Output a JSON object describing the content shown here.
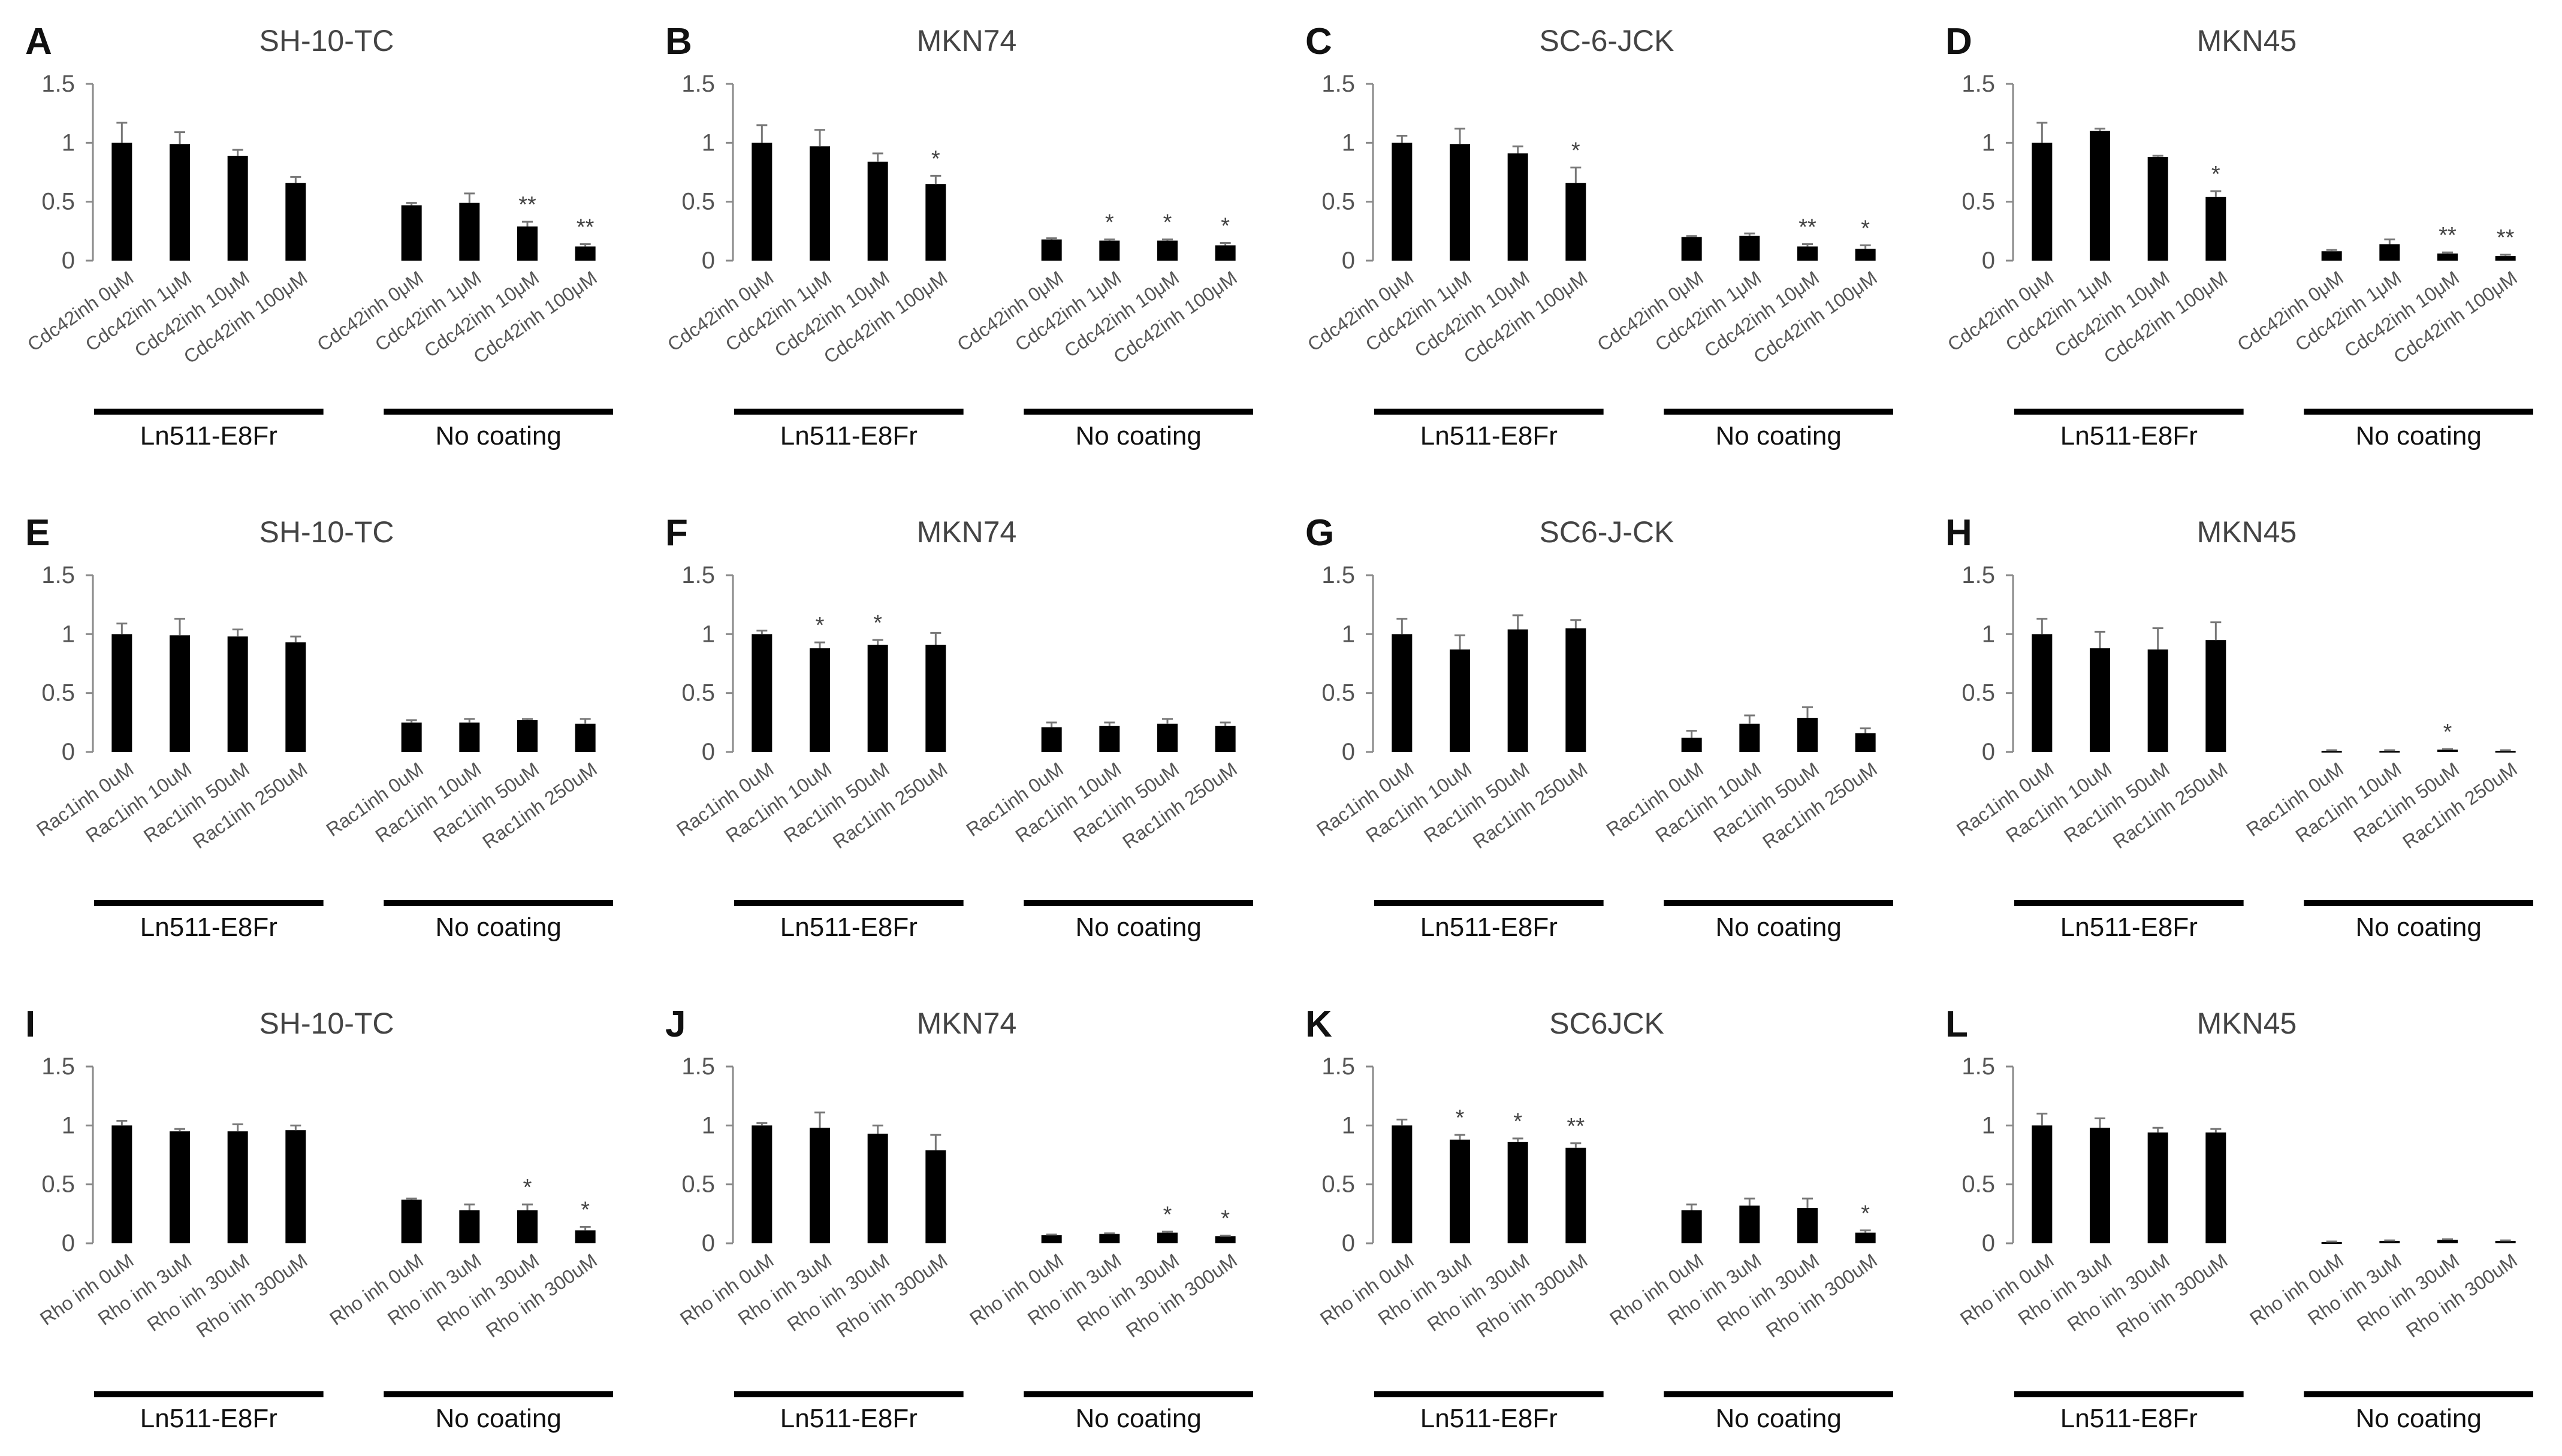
{
  "colors": {
    "bar": "#000000",
    "axis": "#8a8a8a",
    "error": "#777777",
    "text": "#333333"
  },
  "chart_data": [
    {
      "letter": "A",
      "type": "bar",
      "title": "SH-10-TC",
      "ylim": [
        0,
        1.5
      ],
      "yticks": [
        "0",
        "0.5",
        "1",
        "1.5"
      ],
      "groups": [
        "Ln511-E8Fr",
        "No coating"
      ],
      "categories": [
        "Cdc42inh 0μM",
        "Cdc42inh 1μM",
        "Cdc42inh 10μM",
        "Cdc42inh 100μM",
        "Cdc42inh 0μM",
        "Cdc42inh 1μM",
        "Cdc42inh 10μM",
        "Cdc42inh 100μM"
      ],
      "values": [
        1.0,
        0.99,
        0.89,
        0.66,
        0.47,
        0.49,
        0.29,
        0.12
      ],
      "errors": [
        0.17,
        0.1,
        0.05,
        0.05,
        0.02,
        0.08,
        0.04,
        0.02
      ],
      "sig": [
        "",
        "",
        "",
        "",
        "",
        "",
        "**",
        "**"
      ]
    },
    {
      "letter": "B",
      "type": "bar",
      "title": "MKN74",
      "ylim": [
        0,
        1.5
      ],
      "yticks": [
        "0",
        "0.5",
        "1",
        "1.5"
      ],
      "groups": [
        "Ln511-E8Fr",
        "No coating"
      ],
      "categories": [
        "Cdc42inh 0μM",
        "Cdc42inh 1μM",
        "Cdc42inh 10μM",
        "Cdc42inh 100μM",
        "Cdc42inh 0μM",
        "Cdc42inh 1μM",
        "Cdc42inh 10μM",
        "Cdc42inh 100μM"
      ],
      "values": [
        1.0,
        0.97,
        0.84,
        0.65,
        0.18,
        0.17,
        0.17,
        0.13
      ],
      "errors": [
        0.15,
        0.14,
        0.07,
        0.07,
        0.01,
        0.01,
        0.01,
        0.02
      ],
      "sig": [
        "",
        "",
        "",
        "*",
        "",
        "*",
        "*",
        "*"
      ]
    },
    {
      "letter": "C",
      "type": "bar",
      "title": "SC-6-JCK",
      "ylim": [
        0,
        1.5
      ],
      "yticks": [
        "0",
        "0.5",
        "1",
        "1.5"
      ],
      "groups": [
        "Ln511-E8Fr",
        "No coating"
      ],
      "categories": [
        "Cdc42inh 0μM",
        "Cdc42inh 1μM",
        "Cdc42inh 10μM",
        "Cdc42inh 100μM",
        "Cdc42inh 0μM",
        "Cdc42inh 1μM",
        "Cdc42inh 10μM",
        "Cdc42inh 100μM"
      ],
      "values": [
        1.0,
        0.99,
        0.91,
        0.66,
        0.2,
        0.21,
        0.12,
        0.1
      ],
      "errors": [
        0.06,
        0.13,
        0.06,
        0.13,
        0.01,
        0.02,
        0.02,
        0.03
      ],
      "sig": [
        "",
        "",
        "",
        "*",
        "",
        "",
        "**",
        "*"
      ]
    },
    {
      "letter": "D",
      "type": "bar",
      "title": "MKN45",
      "ylim": [
        0,
        1.5
      ],
      "yticks": [
        "0",
        "0.5",
        "1",
        "1.5"
      ],
      "groups": [
        "Ln511-E8Fr",
        "No coating"
      ],
      "categories": [
        "Cdc42inh 0μM",
        "Cdc42inh 1μM",
        "Cdc42inh 10μM",
        "Cdc42inh 100μM",
        "Cdc42inh 0μM",
        "Cdc42inh 1μM",
        "Cdc42inh 10μM",
        "Cdc42inh 100μM"
      ],
      "values": [
        1.0,
        1.1,
        0.88,
        0.54,
        0.08,
        0.14,
        0.06,
        0.04
      ],
      "errors": [
        0.17,
        0.02,
        0.01,
        0.05,
        0.01,
        0.04,
        0.01,
        0.01
      ],
      "sig": [
        "",
        "",
        "",
        "*",
        "",
        "",
        "**",
        "**"
      ]
    },
    {
      "letter": "E",
      "type": "bar",
      "title": "SH-10-TC",
      "ylim": [
        0,
        1.5
      ],
      "yticks": [
        "0",
        "0.5",
        "1",
        "1.5"
      ],
      "groups": [
        "Ln511-E8Fr",
        "No coating"
      ],
      "categories": [
        "Rac1inh 0uM",
        "Rac1inh 10uM",
        "Rac1inh 50uM",
        "Rac1inh 250uM",
        "Rac1inh 0uM",
        "Rac1inh 10uM",
        "Rac1inh 50uM",
        "Rac1inh 250uM"
      ],
      "values": [
        1.0,
        0.99,
        0.98,
        0.93,
        0.25,
        0.25,
        0.27,
        0.24
      ],
      "errors": [
        0.09,
        0.14,
        0.06,
        0.05,
        0.02,
        0.03,
        0.01,
        0.04
      ],
      "sig": [
        "",
        "",
        "",
        "",
        "",
        "",
        "",
        ""
      ]
    },
    {
      "letter": "F",
      "type": "bar",
      "title": "MKN74",
      "ylim": [
        0,
        1.5
      ],
      "yticks": [
        "0",
        "0.5",
        "1",
        "1.5"
      ],
      "groups": [
        "Ln511-E8Fr",
        "No coating"
      ],
      "categories": [
        "Rac1inh 0uM",
        "Rac1inh 10uM",
        "Rac1inh 50uM",
        "Rac1inh 250uM",
        "Rac1inh 0uM",
        "Rac1inh 10uM",
        "Rac1inh 50uM",
        "Rac1inh 250uM"
      ],
      "values": [
        1.0,
        0.88,
        0.91,
        0.91,
        0.21,
        0.22,
        0.24,
        0.22
      ],
      "errors": [
        0.03,
        0.05,
        0.04,
        0.1,
        0.04,
        0.03,
        0.04,
        0.03
      ],
      "sig": [
        "",
        "*",
        "*",
        "",
        "",
        "",
        "",
        ""
      ]
    },
    {
      "letter": "G",
      "type": "bar",
      "title": "SC6-J-CK",
      "ylim": [
        0,
        1.5
      ],
      "yticks": [
        "0",
        "0.5",
        "1",
        "1.5"
      ],
      "groups": [
        "Ln511-E8Fr",
        "No coating"
      ],
      "categories": [
        "Rac1inh 0uM",
        "Rac1inh 10uM",
        "Rac1inh 50uM",
        "Rac1inh 250uM",
        "Rac1inh 0uM",
        "Rac1inh 10uM",
        "Rac1inh 50uM",
        "Rac1inh 250uM"
      ],
      "values": [
        1.0,
        0.87,
        1.04,
        1.05,
        0.12,
        0.24,
        0.29,
        0.16
      ],
      "errors": [
        0.13,
        0.12,
        0.12,
        0.07,
        0.06,
        0.07,
        0.09,
        0.04
      ],
      "sig": [
        "",
        "",
        "",
        "",
        "",
        "",
        "",
        ""
      ]
    },
    {
      "letter": "H",
      "type": "bar",
      "title": "MKN45",
      "ylim": [
        0,
        1.5
      ],
      "yticks": [
        "0",
        "0.5",
        "1",
        "1.5"
      ],
      "groups": [
        "Ln511-E8Fr",
        "No coating"
      ],
      "categories": [
        "Rac1inh 0uM",
        "Rac1inh 10uM",
        "Rac1inh 50uM",
        "Rac1inh 250uM",
        "Rac1inh 0uM",
        "Rac1inh 10uM",
        "Rac1inh 50uM",
        "Rac1inh 250uM"
      ],
      "values": [
        1.0,
        0.88,
        0.87,
        0.95,
        0.01,
        0.01,
        0.02,
        0.01
      ],
      "errors": [
        0.13,
        0.14,
        0.18,
        0.15,
        0.005,
        0.005,
        0.005,
        0.005
      ],
      "sig": [
        "",
        "",
        "",
        "",
        "",
        "",
        "*",
        ""
      ]
    },
    {
      "letter": "I",
      "type": "bar",
      "title": "SH-10-TC",
      "ylim": [
        0,
        1.5
      ],
      "yticks": [
        "0",
        "0.5",
        "1",
        "1.5"
      ],
      "groups": [
        "Ln511-E8Fr",
        "No coating"
      ],
      "categories": [
        "Rho inh 0uM",
        "Rho inh 3uM",
        "Rho inh 30uM",
        "Rho inh 300uM",
        "Rho inh 0uM",
        "Rho inh 3uM",
        "Rho inh 30uM",
        "Rho inh 300uM"
      ],
      "values": [
        1.0,
        0.95,
        0.95,
        0.96,
        0.37,
        0.28,
        0.28,
        0.11
      ],
      "errors": [
        0.04,
        0.02,
        0.06,
        0.04,
        0.01,
        0.05,
        0.05,
        0.03
      ],
      "sig": [
        "",
        "",
        "",
        "",
        "",
        "",
        "*",
        "*"
      ]
    },
    {
      "letter": "J",
      "type": "bar",
      "title": "MKN74",
      "ylim": [
        0,
        1.5
      ],
      "yticks": [
        "0",
        "0.5",
        "1",
        "1.5"
      ],
      "groups": [
        "Ln511-E8Fr",
        "No coating"
      ],
      "categories": [
        "Rho inh 0uM",
        "Rho inh 3uM",
        "Rho inh 30uM",
        "Rho inh 300uM",
        "Rho inh 0uM",
        "Rho inh 3uM",
        "Rho inh 30uM",
        "Rho inh 300uM"
      ],
      "values": [
        1.0,
        0.98,
        0.93,
        0.79,
        0.07,
        0.08,
        0.09,
        0.06
      ],
      "errors": [
        0.02,
        0.13,
        0.07,
        0.13,
        0.005,
        0.005,
        0.01,
        0.005
      ],
      "sig": [
        "",
        "",
        "",
        "",
        "",
        "",
        "*",
        "*"
      ]
    },
    {
      "letter": "K",
      "type": "bar",
      "title": "SC6JCK",
      "ylim": [
        0,
        1.5
      ],
      "yticks": [
        "0",
        "0.5",
        "1",
        "1.5"
      ],
      "groups": [
        "Ln511-E8Fr",
        "No coating"
      ],
      "categories": [
        "Rho inh 0uM",
        "Rho inh 3uM",
        "Rho inh 30uM",
        "Rho inh 300uM",
        "Rho inh 0uM",
        "Rho inh 3uM",
        "Rho inh 30uM",
        "Rho inh 300uM"
      ],
      "values": [
        1.0,
        0.88,
        0.86,
        0.81,
        0.28,
        0.32,
        0.3,
        0.09
      ],
      "errors": [
        0.05,
        0.04,
        0.03,
        0.04,
        0.05,
        0.06,
        0.08,
        0.02
      ],
      "sig": [
        "",
        "*",
        "*",
        "**",
        "",
        "",
        "",
        "*"
      ]
    },
    {
      "letter": "L",
      "type": "bar",
      "title": "MKN45",
      "ylim": [
        0,
        1.5
      ],
      "yticks": [
        "0",
        "0.5",
        "1",
        "1.5"
      ],
      "groups": [
        "Ln511-E8Fr",
        "No coating"
      ],
      "categories": [
        "Rho inh 0uM",
        "Rho inh 3uM",
        "Rho inh 30uM",
        "Rho inh 300uM",
        "Rho inh 0uM",
        "Rho inh 3uM",
        "Rho inh 30uM",
        "Rho inh 300uM"
      ],
      "values": [
        1.0,
        0.98,
        0.94,
        0.94,
        0.01,
        0.02,
        0.03,
        0.02
      ],
      "errors": [
        0.1,
        0.08,
        0.04,
        0.03,
        0.005,
        0.005,
        0.005,
        0.005
      ],
      "sig": [
        "",
        "",
        "",
        "",
        "",
        "",
        "",
        ""
      ]
    }
  ]
}
